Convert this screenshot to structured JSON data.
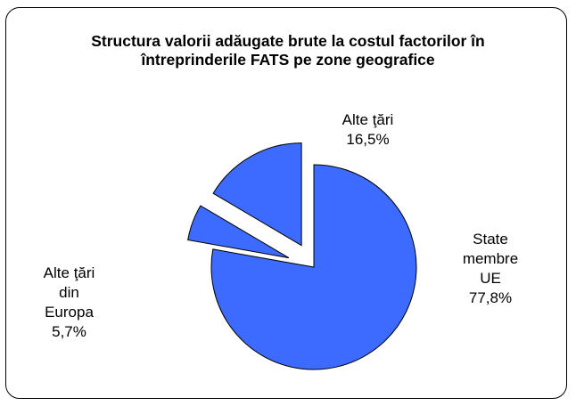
{
  "chart_data": {
    "type": "pie",
    "title": "Structura valorii adăugate brute la costul factorilor în întreprinderile FATS pe zone geografice",
    "categories": [
      "State membre UE",
      "Alte ţări din Europa",
      "Alte ţări"
    ],
    "values": [
      77.8,
      5.7,
      16.5
    ],
    "value_labels": [
      "77,8%",
      "5,7%",
      "16,5%"
    ],
    "colors": [
      "#3d6bff",
      "#3d6bff",
      "#3d6bff"
    ]
  }
}
